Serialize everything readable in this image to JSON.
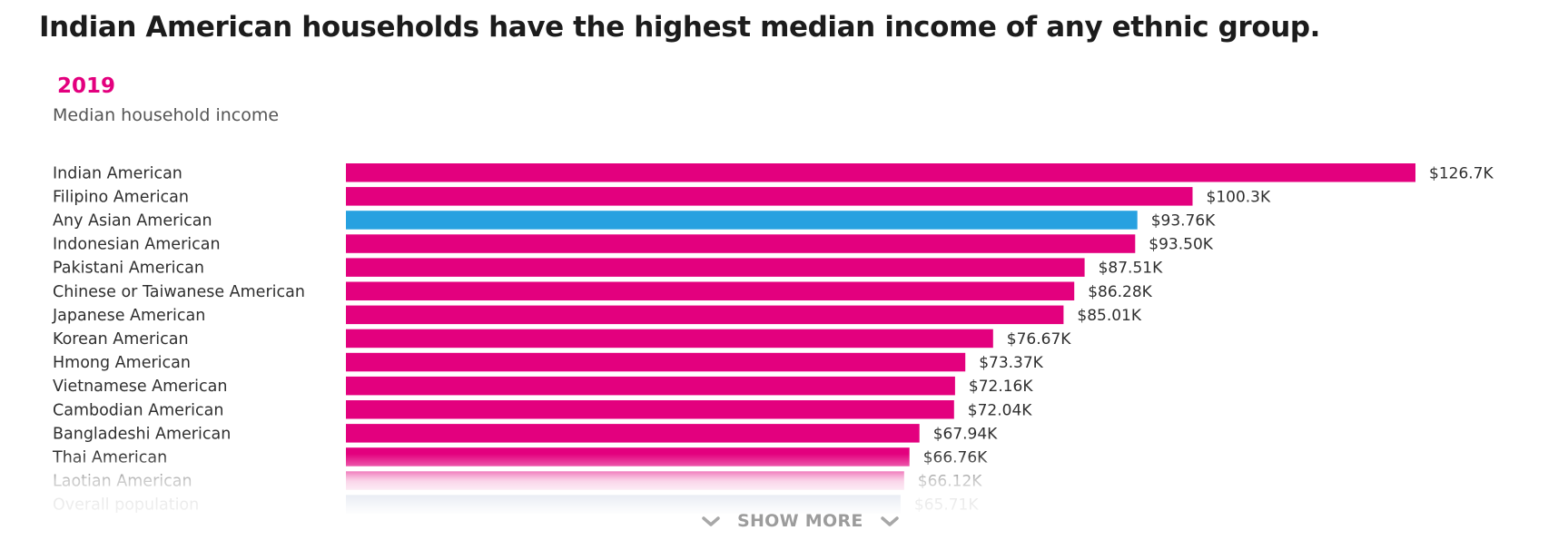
{
  "headline": "Indian American households have the highest median income of any ethnic group.",
  "year": "2019",
  "subtitle": "Median household income",
  "show_more_label": "SHOW MORE",
  "icons": {
    "show_more_left": "chevron-down-icon",
    "show_more_right": "chevron-down-icon"
  },
  "colors": {
    "primary_bar": "#e3007e",
    "highlight_bar": "#27a1e0",
    "baseline_bar": "#9aa9c8",
    "year_text": "#e3007e"
  },
  "chart_data": {
    "type": "bar",
    "orientation": "horizontal",
    "title": "Indian American households have the highest median income of any ethnic group.",
    "subtitle": "Median household income",
    "categories": [
      "Indian American",
      "Filipino American",
      "Any Asian American",
      "Indonesian American",
      "Pakistani American",
      "Chinese or Taiwanese American",
      "Japanese American",
      "Korean American",
      "Hmong American",
      "Vietnamese American",
      "Cambodian American",
      "Bangladeshi American",
      "Thai American",
      "Laotian American",
      "Overall population"
    ],
    "values": [
      126.7,
      100.3,
      93.76,
      93.5,
      87.51,
      86.28,
      85.01,
      76.67,
      73.37,
      72.16,
      72.04,
      67.94,
      66.76,
      66.12,
      65.71
    ],
    "value_labels": [
      "$126.7K",
      "$100.3K",
      "$93.76K",
      "$93.50K",
      "$87.51K",
      "$86.28K",
      "$85.01K",
      "$76.67K",
      "$73.37K",
      "$72.16K",
      "$72.04K",
      "$67.94K",
      "$66.76K",
      "$66.12K",
      "$65.71K"
    ],
    "bar_kinds": [
      "primary",
      "primary",
      "highlight",
      "primary",
      "primary",
      "primary",
      "primary",
      "primary",
      "primary",
      "primary",
      "primary",
      "primary",
      "primary",
      "primary",
      "baseline"
    ],
    "unit": "thousands of US dollars",
    "xlim": [
      0,
      126.7
    ],
    "grid": false,
    "legend": "none"
  }
}
